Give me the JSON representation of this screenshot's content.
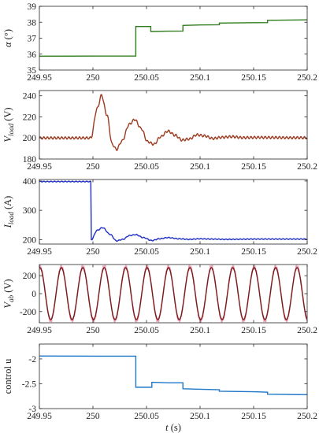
{
  "chart_data": [
    {
      "type": "line",
      "id": "alpha",
      "ylabel_main": "α",
      "ylabel_sub": "",
      "ylabel_unit": " (°)",
      "xlim": [
        249.95,
        250.2
      ],
      "ylim": [
        35,
        39
      ],
      "xticks": [
        249.95,
        250,
        250.05,
        250.1,
        250.15,
        250.2
      ],
      "xtick_labels": [
        "249.95",
        "250",
        "250.05",
        "250.1",
        "250.15",
        "250.2"
      ],
      "yticks": [
        35,
        36,
        37,
        38,
        39
      ],
      "ytick_labels": [
        "35",
        "36",
        "37",
        "38",
        "39"
      ],
      "grid": false,
      "series": [
        {
          "color": "#2e7d1b",
          "step": true,
          "points": [
            [
              249.95,
              35.87
            ],
            [
              250.005,
              35.88
            ],
            [
              250.04,
              35.88
            ],
            [
              250.04,
              37.73
            ],
            [
              250.054,
              37.73
            ],
            [
              250.054,
              37.42
            ],
            [
              250.07,
              37.44
            ],
            [
              250.084,
              37.45
            ],
            [
              250.084,
              37.8
            ],
            [
              250.1,
              37.83
            ],
            [
              250.118,
              37.84
            ],
            [
              250.118,
              37.95
            ],
            [
              250.15,
              37.97
            ],
            [
              250.163,
              37.98
            ],
            [
              250.163,
              38.12
            ],
            [
              250.2,
              38.15
            ]
          ]
        }
      ]
    },
    {
      "type": "line",
      "id": "vload",
      "ylabel_main": "V",
      "ylabel_sub": "load",
      "ylabel_unit": " (V)",
      "xlim": [
        249.95,
        250.2
      ],
      "ylim": [
        180,
        245
      ],
      "xticks": [
        249.95,
        250,
        250.05,
        250.1,
        250.15,
        250.2
      ],
      "xtick_labels": [
        "249.95",
        "250",
        "250.05",
        "250.1",
        "250.15",
        "250.2"
      ],
      "yticks": [
        180,
        200,
        220,
        240
      ],
      "ytick_labels": [
        "180",
        "200",
        "220",
        "240"
      ],
      "grid": false,
      "series": [
        {
          "color": "#9c3a1f",
          "points": [
            [
              249.95,
              200
            ],
            [
              249.998,
              200
            ],
            [
              250.004,
              228
            ],
            [
              250.008,
              240.5
            ],
            [
              250.013,
              222
            ],
            [
              250.018,
              194
            ],
            [
              250.022,
              189
            ],
            [
              250.027,
              197
            ],
            [
              250.034,
              213
            ],
            [
              250.039,
              217.5
            ],
            [
              250.045,
              209
            ],
            [
              250.051,
              196.5
            ],
            [
              250.057,
              194
            ],
            [
              250.063,
              201
            ],
            [
              250.07,
              206.5
            ],
            [
              250.077,
              202.5
            ],
            [
              250.083,
              198
            ],
            [
              250.09,
              199
            ],
            [
              250.097,
              203
            ],
            [
              250.104,
              202
            ],
            [
              250.112,
              199.5
            ],
            [
              250.12,
              200.6
            ],
            [
              250.13,
              201.2
            ],
            [
              250.14,
              200.3
            ],
            [
              250.155,
              200.5
            ],
            [
              250.17,
              200.4
            ],
            [
              250.185,
              200.2
            ],
            [
              250.2,
              200.2
            ]
          ]
        }
      ]
    },
    {
      "type": "line",
      "id": "iload",
      "ylabel_main": "I",
      "ylabel_sub": "load",
      "ylabel_unit": " (A)",
      "xlim": [
        249.95,
        250.2
      ],
      "ylim": [
        185,
        405
      ],
      "xticks": [
        249.95,
        250,
        250.05,
        250.1,
        250.15,
        250.2
      ],
      "xtick_labels": [
        "249.95",
        "250",
        "250.05",
        "250.1",
        "250.15",
        "250.2"
      ],
      "yticks": [
        200,
        300,
        400
      ],
      "ytick_labels": [
        "200",
        "300",
        "400"
      ],
      "grid": false,
      "series": [
        {
          "color": "#1f2fc4",
          "points": [
            [
              249.95,
              398
            ],
            [
              249.998,
              398
            ],
            [
              249.9985,
              200
            ],
            [
              250.004,
              232
            ],
            [
              250.009,
              241
            ],
            [
              250.016,
              218
            ],
            [
              250.022,
              196
            ],
            [
              250.028,
              201
            ],
            [
              250.034,
              214
            ],
            [
              250.04,
              217
            ],
            [
              250.047,
              207
            ],
            [
              250.055,
              197
            ],
            [
              250.062,
              203
            ],
            [
              250.07,
              207
            ],
            [
              250.08,
              203
            ],
            [
              250.09,
              201
            ],
            [
              250.1,
              203
            ],
            [
              250.11,
              202
            ],
            [
              250.125,
              201
            ],
            [
              250.15,
              202
            ],
            [
              250.175,
              202
            ],
            [
              250.2,
              202
            ]
          ]
        }
      ]
    },
    {
      "type": "line",
      "id": "vab",
      "ylabel_main": "V",
      "ylabel_sub": "ab",
      "ylabel_unit": " (V)",
      "xlim": [
        249.95,
        250.2
      ],
      "ylim": [
        -325,
        325
      ],
      "xticks": [
        249.95,
        250,
        250.05,
        250.1,
        250.15,
        250.2
      ],
      "xtick_labels": [
        "249.95",
        "250",
        "250.05",
        "250.1",
        "250.15",
        "250.2"
      ],
      "yticks": [
        -200,
        0,
        200
      ],
      "ytick_labels": [
        "-200",
        "0",
        "200"
      ],
      "grid": false,
      "series": [
        {
          "color": "#e8a1b8",
          "waveform": "sine",
          "amplitude": 300,
          "frequency_hz": 50,
          "phase_deg": 80,
          "noisy": true
        },
        {
          "color": "#7a1a1a",
          "waveform": "sine",
          "amplitude": 290,
          "frequency_hz": 50,
          "phase_deg": 80,
          "noisy": false
        }
      ]
    },
    {
      "type": "line",
      "id": "control",
      "ylabel_main": "control u",
      "ylabel_sub": "",
      "ylabel_unit": "",
      "xlim": [
        249.95,
        250.2
      ],
      "ylim": [
        -3,
        -1.7
      ],
      "xticks": [
        249.95,
        250,
        250.05,
        250.1,
        250.15,
        250.2
      ],
      "xtick_labels": [
        "249.95",
        "250",
        "250.05",
        "250.1",
        "250.15",
        "250.2"
      ],
      "yticks": [
        -3,
        -2.5,
        -2
      ],
      "ytick_labels": [
        "-3",
        "-2.5",
        "-2"
      ],
      "xlabel_main": "t",
      "xlabel_unit": "(s)",
      "grid": false,
      "series": [
        {
          "color": "#1f78c8",
          "step": true,
          "points": [
            [
              249.95,
              -1.94
            ],
            [
              250.02,
              -1.945
            ],
            [
              250.04,
              -1.945
            ],
            [
              250.04,
              -2.57
            ],
            [
              250.055,
              -2.57
            ],
            [
              250.055,
              -2.47
            ],
            [
              250.07,
              -2.48
            ],
            [
              250.084,
              -2.48
            ],
            [
              250.084,
              -2.6
            ],
            [
              250.1,
              -2.61
            ],
            [
              250.118,
              -2.62
            ],
            [
              250.118,
              -2.65
            ],
            [
              250.15,
              -2.66
            ],
            [
              250.163,
              -2.67
            ],
            [
              250.163,
              -2.71
            ],
            [
              250.2,
              -2.72
            ]
          ]
        }
      ]
    }
  ]
}
